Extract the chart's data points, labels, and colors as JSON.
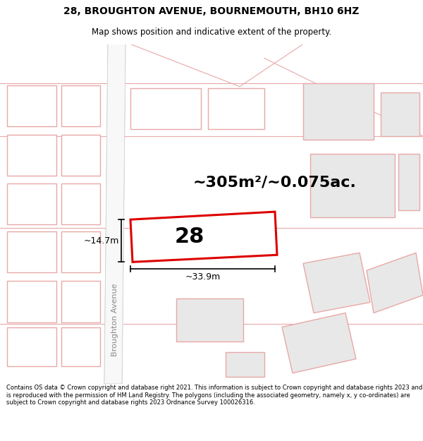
{
  "title_line1": "28, BROUGHTON AVENUE, BOURNEMOUTH, BH10 6HZ",
  "title_line2": "Map shows position and indicative extent of the property.",
  "footer_text": "Contains OS data © Crown copyright and database right 2021. This information is subject to Crown copyright and database rights 2023 and is reproduced with the permission of HM Land Registry. The polygons (including the associated geometry, namely x, y co-ordinates) are subject to Crown copyright and database rights 2023 Ordnance Survey 100026316.",
  "area_text": "~305m²/~0.075ac.",
  "width_text": "~33.9m",
  "height_text": "~14.7m",
  "property_number": "28",
  "street_label": "Broughton Avenue",
  "map_bg": "#ffffff",
  "building_outline_color": "#e8a8a8",
  "building_fill_left": "#ffffff",
  "building_fill_right": "#e8e8e8",
  "subject_outline_color": "#dd0000",
  "road_fill": "#f8f8f8",
  "road_line_color": "#d0d0d0",
  "title_fontsize": 10,
  "subtitle_fontsize": 8.5,
  "footer_fontsize": 6.0,
  "area_fontsize": 16,
  "dim_fontsize": 9,
  "street_fontsize": 8,
  "property_fontsize": 22
}
